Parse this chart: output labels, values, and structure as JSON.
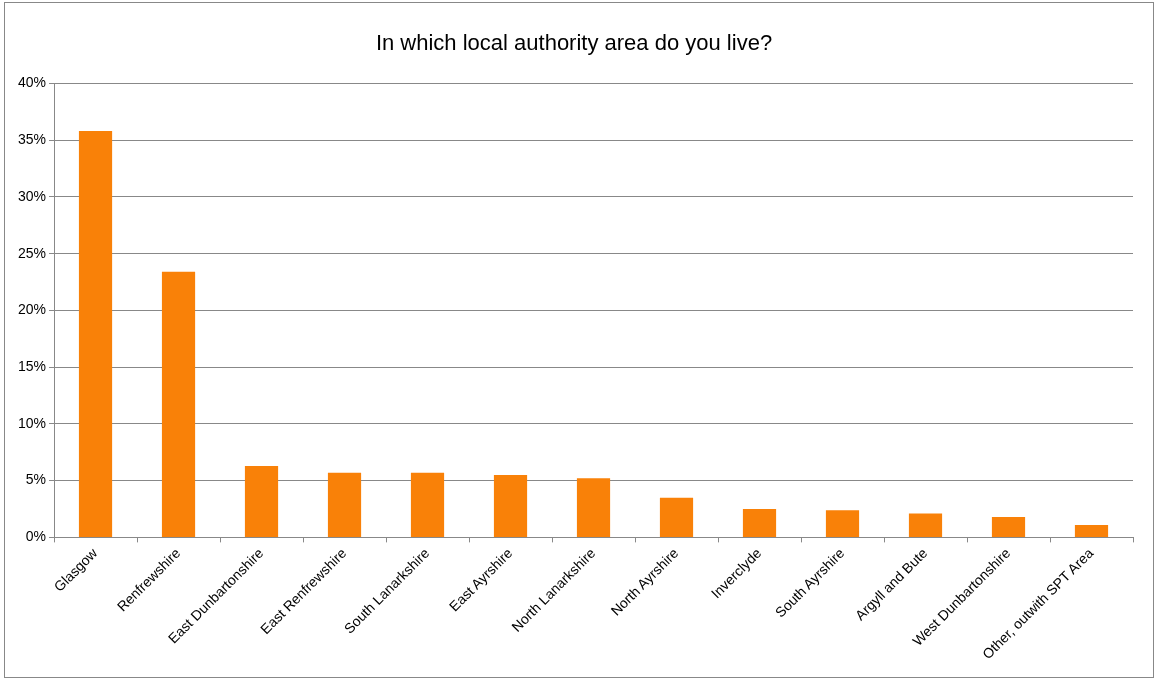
{
  "chart_data": {
    "type": "bar",
    "title": "In which local authority area do you live?",
    "categories": [
      "Glasgow",
      "Renfrewshire",
      "East Dunbartonshire",
      "East Renfrewshire",
      "South Lanarkshire",
      "East Ayrshire",
      "North Lanarkshire",
      "North Ayrshire",
      "Inverclyde",
      "South Ayrshire",
      "Argyll and Bute",
      "West Dunbartonshire",
      "Other, outwith SPT Area"
    ],
    "values": [
      35.8,
      23.4,
      6.3,
      5.7,
      5.7,
      5.5,
      5.2,
      3.5,
      2.5,
      2.4,
      2.1,
      1.8,
      1.1
    ],
    "color": "#f98108",
    "ylim": [
      0,
      40
    ],
    "yticks": [
      {
        "value": 0,
        "label": "0%"
      },
      {
        "value": 5,
        "label": "5%"
      },
      {
        "value": 10,
        "label": "10%"
      },
      {
        "value": 15,
        "label": "15%"
      },
      {
        "value": 20,
        "label": "20%"
      },
      {
        "value": 25,
        "label": "25%"
      },
      {
        "value": 30,
        "label": "30%"
      },
      {
        "value": 35,
        "label": "35%"
      },
      {
        "value": 40,
        "label": "40%"
      }
    ],
    "grid": "y",
    "legend": false
  }
}
